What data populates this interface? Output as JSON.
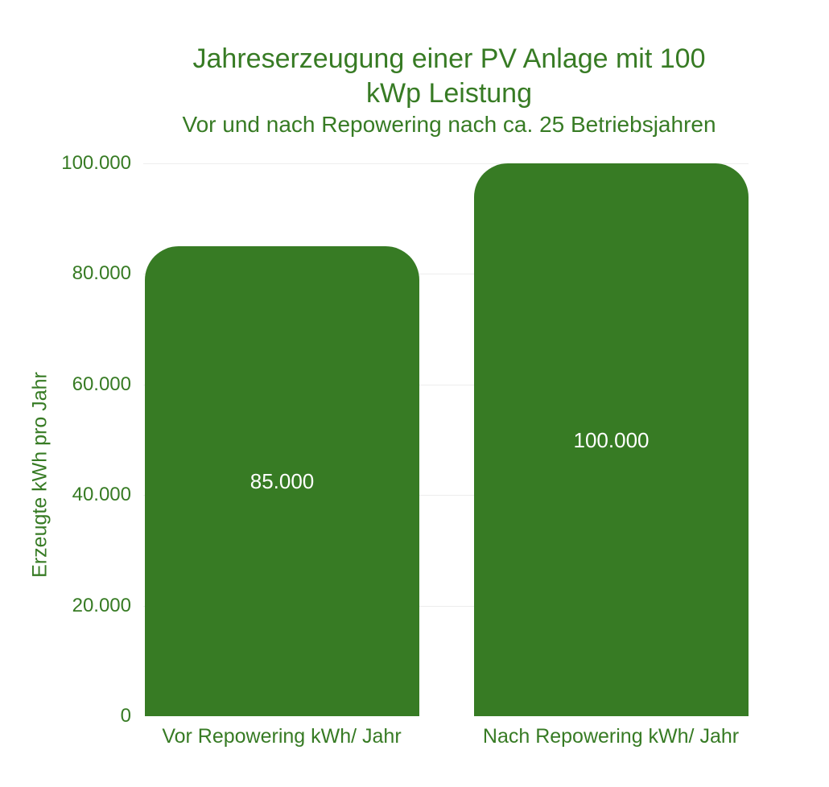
{
  "chart_data": {
    "type": "bar",
    "title": "Jahreserzeugung einer PV Anlage mit 100 kWp Leistung",
    "title_lines": [
      "Jahreserzeugung einer PV Anlage mit 100",
      "kWp Leistung"
    ],
    "subtitle": "Vor und nach Repowering nach ca. 25 Betriebsjahren",
    "ylabel": "Erzeugte kWh pro Jahr",
    "xlabel": "",
    "categories": [
      "Vor Repowering kWh/ Jahr",
      "Nach Repowering kWh/ Jahr"
    ],
    "values": [
      85000,
      100000
    ],
    "value_labels": [
      "85.000",
      "100.000"
    ],
    "ylim": [
      0,
      100000
    ],
    "yticks": [
      0,
      20000,
      40000,
      60000,
      80000,
      100000
    ],
    "ytick_labels": [
      "0",
      "20.000",
      "40.000",
      "60.000",
      "80.000",
      "100.000"
    ],
    "grid": "horizontal",
    "legend": "none",
    "colors": {
      "bar": "#377b24",
      "text": "#377b24",
      "value_label": "#ffffff",
      "gridline": "#ededed",
      "background": "#ffffff"
    }
  }
}
